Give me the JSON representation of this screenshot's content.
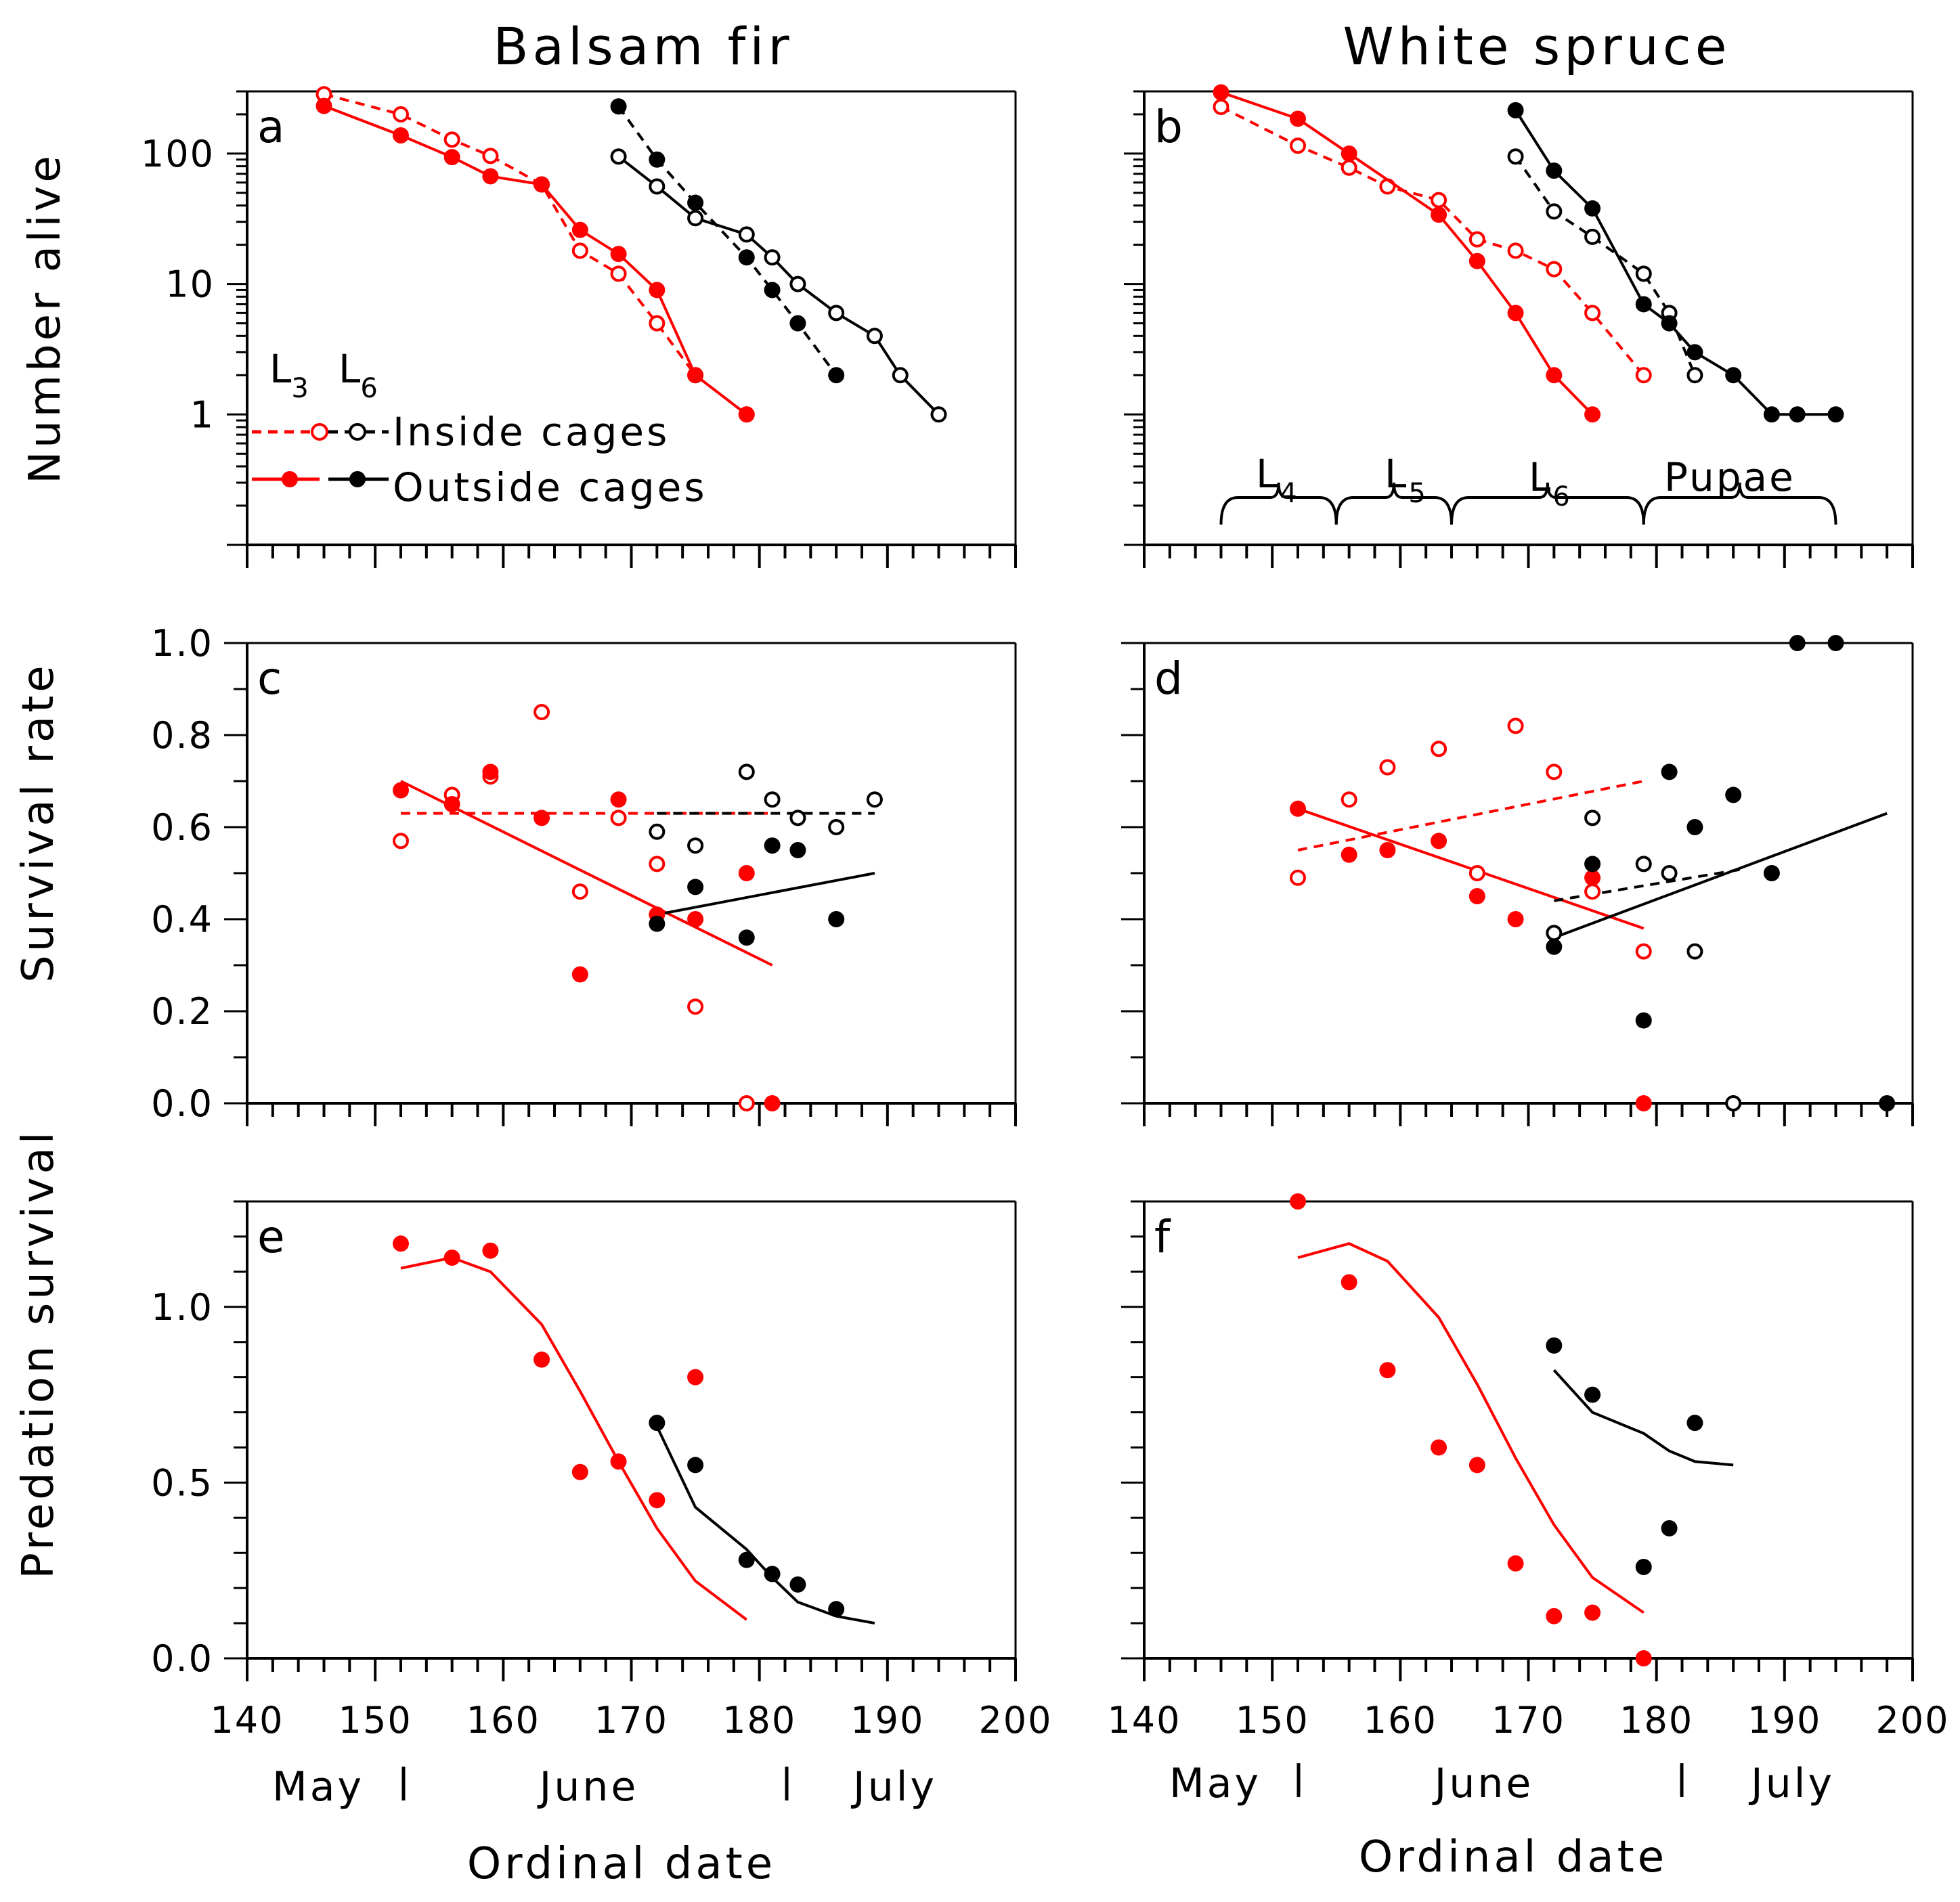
{
  "titles": {
    "left": "Balsam fir",
    "right": "White spruce"
  },
  "axis_labels": {
    "a_y": "Number alive",
    "c_y": "Survival rate",
    "e_y": "Predation survival",
    "x": "Ordinal date"
  },
  "months": {
    "may": "May",
    "june": "June",
    "july": "July"
  },
  "legend": {
    "l3_base": "L",
    "l3_sub": "3",
    "l6_base": "L",
    "l6_sub": "6",
    "inside": "Inside cages",
    "outside": "Outside cages"
  },
  "stages": [
    {
      "base": "L",
      "sub": "4"
    },
    {
      "base": "L",
      "sub": "5"
    },
    {
      "base": "L",
      "sub": "6"
    },
    {
      "base": "Pupae",
      "sub": ""
    }
  ],
  "colors": {
    "L3": "#ff0000",
    "L6": "#000000"
  },
  "chart_data": [
    {
      "panel": "a",
      "type": "line",
      "title": "Balsam fir",
      "ylabel": "Number alive",
      "xlabel": "",
      "yscale": "log",
      "ylim": [
        0.1,
        300
      ],
      "xlim": [
        140,
        200
      ],
      "yticks": [
        1,
        10,
        100
      ],
      "yticklabels": [
        "1",
        "10",
        "100"
      ],
      "series": [
        {
          "name": "L3 inside cages",
          "color": "#ff0000",
          "marker": "open",
          "dash": true,
          "x": [
            146,
            152,
            156,
            159,
            163,
            166,
            169,
            172,
            175,
            179
          ],
          "y": [
            285,
            200,
            128,
            96,
            58,
            18,
            12,
            5,
            2,
            1
          ]
        },
        {
          "name": "L3 outside cages",
          "color": "#ff0000",
          "marker": "filled",
          "dash": false,
          "x": [
            146,
            152,
            156,
            159,
            163,
            166,
            169,
            172,
            175,
            179
          ],
          "y": [
            232,
            138,
            94,
            67,
            58,
            26,
            17,
            9,
            2,
            1
          ]
        },
        {
          "name": "L6 inside cages",
          "color": "#000000",
          "marker": "open",
          "dash": false,
          "x": [
            169,
            172,
            175,
            179,
            181,
            183,
            186,
            189,
            191,
            194
          ],
          "y": [
            95,
            56,
            32,
            24,
            16,
            10,
            6,
            4,
            2,
            1
          ]
        },
        {
          "name": "L6 outside cages",
          "color": "#000000",
          "marker": "filled",
          "dash": true,
          "x": [
            169,
            172,
            175,
            179,
            181,
            183,
            186
          ],
          "y": [
            230,
            90,
            42,
            16,
            9,
            5,
            2
          ]
        }
      ]
    },
    {
      "panel": "b",
      "type": "line",
      "title": "White spruce",
      "ylabel": "",
      "xlabel": "",
      "yscale": "log",
      "ylim": [
        0.1,
        300
      ],
      "xlim": [
        140,
        200
      ],
      "series": [
        {
          "name": "L3 inside cages",
          "color": "#ff0000",
          "marker": "open",
          "dash": true,
          "x": [
            146,
            152,
            156,
            159,
            163,
            166,
            169,
            172,
            175,
            179
          ],
          "y": [
            228,
            115,
            78,
            56,
            44,
            22,
            18,
            13,
            6,
            2
          ]
        },
        {
          "name": "L3 outside cages",
          "color": "#ff0000",
          "marker": "filled",
          "dash": false,
          "x": [
            146,
            152,
            156,
            163,
            166,
            169,
            172,
            175
          ],
          "y": [
            295,
            185,
            100,
            34,
            15,
            6,
            2,
            1
          ]
        },
        {
          "name": "L6 inside cages",
          "color": "#000000",
          "marker": "open",
          "dash": true,
          "x": [
            169,
            172,
            175,
            179,
            181,
            183
          ],
          "y": [
            95,
            36,
            23,
            12,
            6,
            2
          ]
        },
        {
          "name": "L6 outside cages",
          "color": "#000000",
          "marker": "filled",
          "dash": false,
          "x": [
            169,
            172,
            175,
            179,
            181,
            183,
            186,
            189,
            191,
            194
          ],
          "y": [
            215,
            74,
            38,
            7,
            5,
            3,
            2,
            1,
            1,
            1
          ]
        }
      ],
      "stage_brackets": [
        {
          "label": "L4",
          "start": 146,
          "end": 155
        },
        {
          "label": "L5",
          "start": 155,
          "end": 164
        },
        {
          "label": "L6",
          "start": 164,
          "end": 179
        },
        {
          "label": "Pupae",
          "start": 179,
          "end": 194
        }
      ]
    },
    {
      "panel": "c",
      "type": "scatter",
      "ylabel": "Survival rate",
      "xlabel": "",
      "ylim": [
        0.0,
        1.0
      ],
      "xlim": [
        140,
        200
      ],
      "yticks": [
        0.0,
        0.2,
        0.4,
        0.6,
        0.8,
        1.0
      ],
      "yticklabels": [
        "0.0",
        "0.2",
        "0.4",
        "0.6",
        "0.8",
        "1.0"
      ],
      "series": [
        {
          "name": "L3 inside cages",
          "color": "#ff0000",
          "marker": "open",
          "x": [
            152,
            156,
            159,
            163,
            166,
            169,
            172,
            175,
            179
          ],
          "y": [
            0.57,
            0.67,
            0.71,
            0.85,
            0.46,
            0.62,
            0.52,
            0.21,
            0.0
          ]
        },
        {
          "name": "L3 outside cages",
          "color": "#ff0000",
          "marker": "filled",
          "x": [
            152,
            156,
            159,
            163,
            166,
            169,
            172,
            175,
            179,
            181
          ],
          "y": [
            0.68,
            0.65,
            0.72,
            0.62,
            0.28,
            0.66,
            0.41,
            0.4,
            0.5,
            0.0
          ]
        },
        {
          "name": "L6 inside cages",
          "color": "#000000",
          "marker": "open",
          "x": [
            172,
            175,
            179,
            181,
            183,
            186,
            189
          ],
          "y": [
            0.59,
            0.56,
            0.72,
            0.66,
            0.62,
            0.6,
            0.66
          ]
        },
        {
          "name": "L6 outside cages",
          "color": "#000000",
          "marker": "filled",
          "x": [
            172,
            175,
            179,
            181,
            183,
            186
          ],
          "y": [
            0.39,
            0.47,
            0.36,
            0.56,
            0.55,
            0.4
          ]
        }
      ],
      "fits": [
        {
          "name": "L3 inside cages fit",
          "color": "#ff0000",
          "dash": true,
          "x": [
            152,
            181
          ],
          "y": [
            0.63,
            0.63
          ]
        },
        {
          "name": "L3 outside cages fit",
          "color": "#ff0000",
          "dash": false,
          "x": [
            152,
            181
          ],
          "y": [
            0.7,
            0.3
          ]
        },
        {
          "name": "L6 inside cages fit",
          "color": "#000000",
          "dash": true,
          "x": [
            172,
            189
          ],
          "y": [
            0.63,
            0.63
          ]
        },
        {
          "name": "L6 outside cages fit",
          "color": "#000000",
          "dash": false,
          "x": [
            172,
            189
          ],
          "y": [
            0.41,
            0.5
          ]
        }
      ]
    },
    {
      "panel": "d",
      "type": "scatter",
      "ylabel": "",
      "xlabel": "",
      "ylim": [
        0.0,
        1.0
      ],
      "xlim": [
        140,
        200
      ],
      "series": [
        {
          "name": "L3 inside cages",
          "color": "#ff0000",
          "marker": "open",
          "x": [
            152,
            156,
            159,
            163,
            166,
            169,
            172,
            175,
            179
          ],
          "y": [
            0.49,
            0.66,
            0.73,
            0.77,
            0.5,
            0.82,
            0.72,
            0.46,
            0.33
          ]
        },
        {
          "name": "L3 outside cages",
          "color": "#ff0000",
          "marker": "filled",
          "x": [
            152,
            156,
            159,
            163,
            166,
            169,
            175,
            179
          ],
          "y": [
            0.64,
            0.54,
            0.55,
            0.57,
            0.45,
            0.4,
            0.49,
            0.0
          ]
        },
        {
          "name": "L6 inside cages",
          "color": "#000000",
          "marker": "open",
          "x": [
            172,
            175,
            179,
            181,
            183,
            186
          ],
          "y": [
            0.37,
            0.62,
            0.52,
            0.5,
            0.33,
            0.0
          ]
        },
        {
          "name": "L6 outside cages",
          "color": "#000000",
          "marker": "filled",
          "x": [
            172,
            175,
            179,
            181,
            183,
            186,
            189,
            191,
            194,
            198
          ],
          "y": [
            0.34,
            0.52,
            0.18,
            0.72,
            0.6,
            0.67,
            0.5,
            1.0,
            1.0,
            0.0
          ]
        }
      ],
      "fits": [
        {
          "name": "L3 inside cages fit",
          "color": "#ff0000",
          "dash": true,
          "x": [
            152,
            179
          ],
          "y": [
            0.55,
            0.7
          ]
        },
        {
          "name": "L3 outside cages fit",
          "color": "#ff0000",
          "dash": false,
          "x": [
            152,
            179
          ],
          "y": [
            0.64,
            0.38
          ]
        },
        {
          "name": "L6 inside cages fit",
          "color": "#000000",
          "dash": true,
          "x": [
            172,
            187
          ],
          "y": [
            0.44,
            0.51
          ]
        },
        {
          "name": "L6 outside cages fit",
          "color": "#000000",
          "dash": false,
          "x": [
            172,
            198
          ],
          "y": [
            0.36,
            0.63
          ]
        }
      ]
    },
    {
      "panel": "e",
      "type": "scatter",
      "ylabel": "Predation survival",
      "xlabel": "Ordinal date",
      "ylim": [
        0.0,
        1.3
      ],
      "xlim": [
        140,
        200
      ],
      "yticks": [
        0.0,
        0.5,
        1.0
      ],
      "yticklabels": [
        "0.0",
        "0.5",
        "1.0"
      ],
      "xticks": [
        140,
        150,
        160,
        170,
        180,
        190,
        200
      ],
      "xticklabels": [
        "140",
        "150",
        "160",
        "170",
        "180",
        "190",
        "200"
      ],
      "series": [
        {
          "name": "L3 outside cages",
          "color": "#ff0000",
          "marker": "filled",
          "x": [
            152,
            156,
            159,
            163,
            166,
            169,
            172,
            175
          ],
          "y": [
            1.18,
            1.14,
            1.16,
            0.85,
            0.53,
            0.56,
            0.45,
            0.8
          ]
        },
        {
          "name": "L6 outside cages",
          "color": "#000000",
          "marker": "filled",
          "x": [
            172,
            175,
            179,
            181,
            183,
            186
          ],
          "y": [
            0.67,
            0.55,
            0.28,
            0.24,
            0.21,
            0.14
          ]
        }
      ],
      "fits": [
        {
          "name": "L3 model",
          "color": "#ff0000",
          "dash": false,
          "x": [
            152,
            156,
            159,
            163,
            166,
            169,
            172,
            175,
            179
          ],
          "y": [
            1.11,
            1.14,
            1.1,
            0.95,
            0.76,
            0.56,
            0.37,
            0.22,
            0.11
          ]
        },
        {
          "name": "L6 model",
          "color": "#000000",
          "dash": false,
          "x": [
            172,
            175,
            179,
            181,
            183,
            186,
            189
          ],
          "y": [
            0.66,
            0.43,
            0.31,
            0.23,
            0.16,
            0.12,
            0.1
          ]
        }
      ]
    },
    {
      "panel": "f",
      "type": "scatter",
      "ylabel": "",
      "xlabel": "Ordinal date",
      "ylim": [
        0.0,
        1.3
      ],
      "xlim": [
        140,
        200
      ],
      "xticks": [
        140,
        150,
        160,
        170,
        180,
        190,
        200
      ],
      "xticklabels": [
        "140",
        "150",
        "160",
        "170",
        "180",
        "190",
        "200"
      ],
      "series": [
        {
          "name": "L3 outside cages",
          "color": "#ff0000",
          "marker": "filled",
          "x": [
            152,
            156,
            159,
            163,
            166,
            169,
            172,
            175,
            179
          ],
          "y": [
            1.3,
            1.07,
            0.82,
            0.6,
            0.55,
            0.27,
            0.12,
            0.13,
            0.0
          ]
        },
        {
          "name": "L6 outside cages",
          "color": "#000000",
          "marker": "filled",
          "x": [
            172,
            175,
            179,
            181,
            183
          ],
          "y": [
            0.89,
            0.75,
            0.26,
            0.37,
            0.67
          ]
        }
      ],
      "fits": [
        {
          "name": "L3 model",
          "color": "#ff0000",
          "dash": false,
          "x": [
            152,
            156,
            159,
            163,
            166,
            169,
            172,
            175,
            179
          ],
          "y": [
            1.14,
            1.18,
            1.13,
            0.97,
            0.78,
            0.57,
            0.38,
            0.23,
            0.13
          ]
        },
        {
          "name": "L6 model",
          "color": "#000000",
          "dash": false,
          "x": [
            172,
            175,
            179,
            181,
            183,
            186
          ],
          "y": [
            0.82,
            0.7,
            0.64,
            0.59,
            0.56,
            0.55
          ]
        }
      ]
    }
  ]
}
